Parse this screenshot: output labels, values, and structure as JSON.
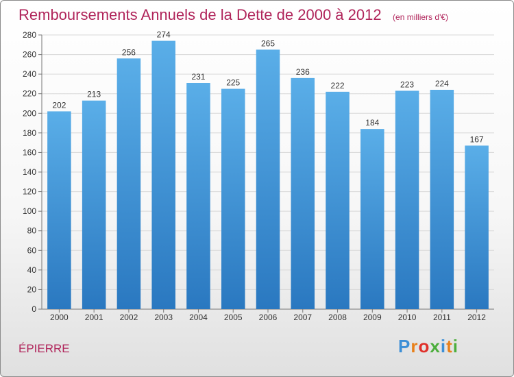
{
  "chart_data": {
    "type": "bar",
    "title": "Remboursements Annuels de la Dette de 2000 à 2012",
    "unit": "(en milliers d'€)",
    "categories": [
      "2000",
      "2001",
      "2002",
      "2003",
      "2004",
      "2005",
      "2006",
      "2007",
      "2008",
      "2009",
      "2010",
      "2011",
      "2012"
    ],
    "values": [
      202,
      213,
      256,
      274,
      231,
      225,
      265,
      236,
      222,
      184,
      223,
      224,
      167
    ],
    "ylim": [
      0,
      280
    ],
    "yticks": [
      0,
      20,
      40,
      60,
      80,
      100,
      120,
      140,
      160,
      180,
      200,
      220,
      240,
      260,
      280
    ],
    "grid": true,
    "bar_color": "#4a9fdf",
    "bar_color_dark": "#2a78c0"
  },
  "place": "ÉPIERRE",
  "logo": {
    "text": "Proxiti",
    "colors": [
      "#3d8fd6",
      "#e8801a",
      "#e0302a",
      "#4cae3c",
      "#3d8fd6",
      "#e8801a",
      "#4cae3c"
    ]
  }
}
